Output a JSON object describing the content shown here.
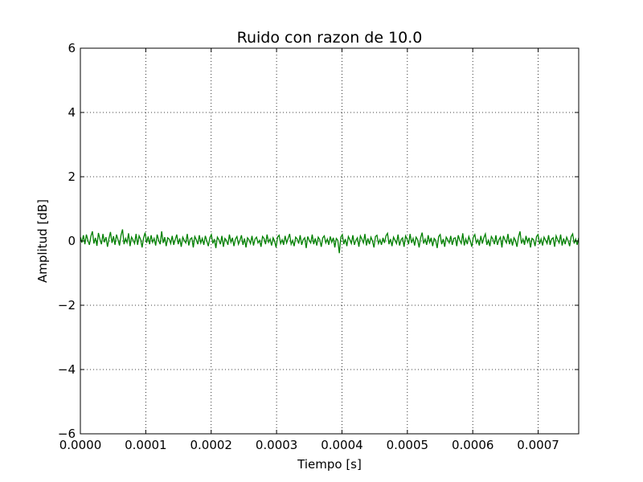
{
  "chart_data": {
    "type": "line",
    "title": "Ruido con razon de 10.0",
    "xlabel": "Tiempo [s]",
    "ylabel": "Amplitud [dB]",
    "xlim": [
      0,
      0.000762
    ],
    "ylim": [
      -6,
      6
    ],
    "grid": true,
    "x_ticks": [
      0,
      0.0001,
      0.0002,
      0.0003,
      0.0004,
      0.0005,
      0.0006,
      0.0007
    ],
    "x_tick_labels": [
      "0.0000",
      "0.0001",
      "0.0002",
      "0.0003",
      "0.0004",
      "0.0005",
      "0.0006",
      "0.0007"
    ],
    "y_ticks": [
      -6,
      -4,
      -2,
      0,
      2,
      4,
      6
    ],
    "y_tick_labels": [
      "−6",
      "−4",
      "−2",
      "0",
      "2",
      "4",
      "6"
    ],
    "series": [
      {
        "color": "#008000",
        "x_start": 0,
        "x_end": 0.000762,
        "values": [
          0.12,
          -0.05,
          0.18,
          -0.1,
          0.2,
          0.02,
          -0.12,
          0.15,
          0.3,
          -0.08,
          0.1,
          -0.15,
          0.25,
          0.05,
          -0.1,
          0.22,
          -0.04,
          0.12,
          -0.18,
          0.08,
          0.28,
          -0.06,
          0.15,
          -0.12,
          0.2,
          0.04,
          -0.14,
          0.18,
          0.36,
          -0.1,
          0.08,
          -0.05,
          0.24,
          -0.16,
          0.12,
          0.03,
          -0.08,
          0.22,
          -0.12,
          0.16,
          0.05,
          -0.2,
          0.1,
          0.26,
          -0.06,
          0.14,
          -0.1,
          0.18,
          -0.04,
          0.08,
          -0.14,
          0.2,
          0.02,
          -0.1,
          0.3,
          -0.06,
          0.12,
          -0.16,
          0.1,
          0.06,
          -0.08,
          0.16,
          -0.12,
          0.04,
          0.2,
          -0.1,
          0.08,
          -0.18,
          0.12,
          0.02,
          -0.06,
          0.22,
          -0.14,
          0.06,
          0.1,
          -0.2,
          0.14,
          0.04,
          -0.1,
          0.18,
          -0.06,
          0.08,
          -0.12,
          0.16,
          0.0,
          -0.16,
          0.1,
          0.2,
          -0.08,
          0.06,
          -0.22,
          0.12,
          0.04,
          -0.1,
          0.16,
          -0.18,
          0.08,
          0.02,
          -0.12,
          0.2,
          -0.04,
          0.1,
          -0.16,
          0.06,
          0.14,
          -0.1,
          0.02,
          0.18,
          -0.12,
          0.08,
          -0.2,
          0.1,
          0.04,
          -0.08,
          0.16,
          -0.14,
          0.06,
          0.12,
          -0.06,
          0.02,
          -0.18,
          0.14,
          0.08,
          -0.1,
          0.2,
          -0.04,
          0.06,
          -0.14,
          0.1,
          0.0,
          -0.2,
          0.12,
          0.18,
          -0.08,
          0.04,
          -0.12,
          0.16,
          -0.06,
          0.08,
          0.22,
          -0.1,
          0.02,
          -0.16,
          0.12,
          0.06,
          -0.08,
          0.18,
          -0.12,
          0.04,
          0.1,
          -0.22,
          0.14,
          0.02,
          -0.06,
          0.2,
          -0.1,
          0.08,
          -0.14,
          0.12,
          0.04,
          -0.18,
          0.1,
          0.16,
          -0.06,
          0.06,
          -0.12,
          0.14,
          -0.04,
          0.1,
          -0.2,
          0.08,
          0.02,
          -0.38,
          0.12,
          0.2,
          -0.1,
          0.06,
          -0.16,
          0.14,
          0.04,
          -0.08,
          0.18,
          -0.12,
          0.02,
          0.1,
          -0.18,
          0.16,
          0.06,
          -0.06,
          0.22,
          -0.14,
          0.08,
          -0.1,
          0.12,
          0.0,
          -0.2,
          0.14,
          0.18,
          -0.08,
          0.04,
          -0.12,
          0.1,
          -0.06,
          0.16,
          0.24,
          -0.1,
          0.06,
          -0.16,
          0.12,
          0.02,
          -0.08,
          0.2,
          -0.14,
          0.04,
          0.1,
          -0.18,
          0.16,
          0.06,
          -0.1,
          0.22,
          -0.06,
          0.08,
          -0.14,
          0.12,
          0.04,
          -0.2,
          0.1,
          0.26,
          -0.08,
          0.06,
          -0.12,
          0.18,
          -0.04,
          0.1,
          -0.16,
          0.08,
          0.02,
          -0.22,
          0.14,
          0.2,
          -0.1,
          0.06,
          -0.18,
          0.12,
          0.04,
          -0.06,
          0.16,
          -0.12,
          0.08,
          0.1,
          -0.16,
          0.18,
          0.02,
          -0.08,
          0.24,
          -0.14,
          0.06,
          -0.1,
          0.14,
          0.0,
          -0.18,
          0.12,
          0.2,
          -0.06,
          0.04,
          -0.14,
          0.16,
          -0.08,
          0.1,
          0.22,
          -0.12,
          0.02,
          -0.16,
          0.14,
          0.06,
          -0.1,
          0.18,
          -0.12,
          0.04,
          0.12,
          -0.2,
          0.16,
          0.04,
          -0.06,
          0.22,
          -0.1,
          0.08,
          -0.14,
          0.1,
          0.02,
          -0.18,
          0.12,
          0.3,
          -0.08,
          0.06,
          -0.12,
          0.16,
          -0.04,
          0.1,
          -0.2,
          0.08,
          0.04,
          -0.16,
          0.14,
          0.2,
          -0.1,
          0.06,
          -0.14,
          0.12,
          0.02,
          -0.08,
          0.18,
          -0.12,
          0.06,
          0.1,
          -0.18,
          0.16,
          0.04,
          -0.06,
          0.2,
          -0.14,
          0.08,
          -0.1,
          0.12,
          0.0,
          -0.16,
          0.14,
          0.22,
          -0.08,
          0.06,
          -0.12,
          0.1
        ]
      }
    ]
  }
}
